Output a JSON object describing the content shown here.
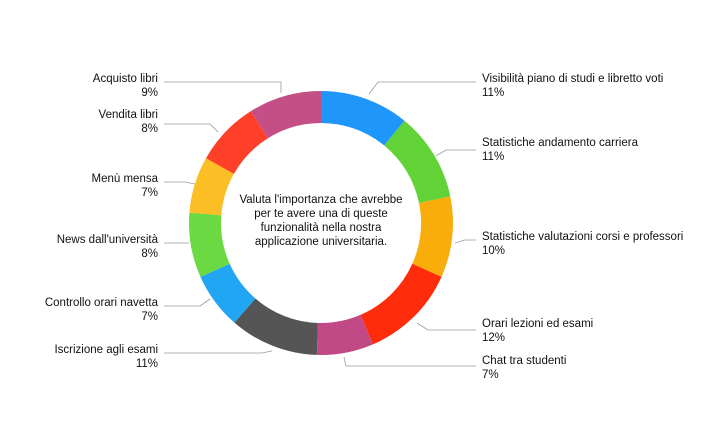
{
  "chart_data": {
    "type": "pie",
    "variant": "donut",
    "center_text": "Valuta l'importanza che avrebbe per te avere una di queste funzionalità nella nostra applicazione universitaria.",
    "legend": "none (callout labels)",
    "grid": false,
    "slices": [
      {
        "label": "Visibilità piano di studi e libretto voti",
        "value": 11,
        "display": "11%",
        "color": "#1E96FA"
      },
      {
        "label": "Statistiche andamento carriera",
        "value": 11,
        "display": "11%",
        "color": "#61D337"
      },
      {
        "label": "Statistiche valutazioni corsi e professori",
        "value": 10,
        "display": "10%",
        "color": "#F8AD0A"
      },
      {
        "label": "Orari lezioni ed esami",
        "value": 12,
        "display": "12%",
        "color": "#FF2C0C"
      },
      {
        "label": "Chat tra studenti",
        "value": 7,
        "display": "7%",
        "color": "#C14A86"
      },
      {
        "label": "Iscrizione agli esami",
        "value": 11,
        "display": "11%",
        "color": "#555555"
      },
      {
        "label": "Controllo orari navetta",
        "value": 7,
        "display": "7%",
        "color": "#21A6F4"
      },
      {
        "label": "News dall'università",
        "value": 8,
        "display": "8%",
        "color": "#6BD942"
      },
      {
        "label": "Menù mensa",
        "value": 7,
        "display": "7%",
        "color": "#FBBE24"
      },
      {
        "label": "Vendita libri",
        "value": 8,
        "display": "8%",
        "color": "#FF4028"
      },
      {
        "label": "Acquisto libri",
        "value": 9,
        "display": "9%",
        "color": "#C34F86"
      }
    ]
  }
}
